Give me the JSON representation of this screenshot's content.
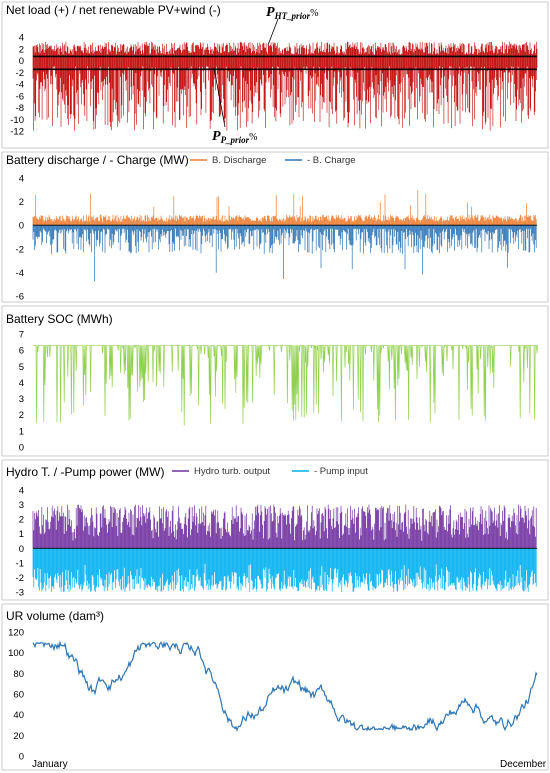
{
  "figure": {
    "x_axis": {
      "start_label": "January",
      "end_label": "December"
    }
  },
  "chart_data": [
    {
      "type": "line",
      "title": "Net load (+) / net renewable PV+wind (-)",
      "yticks": [
        4,
        2,
        0,
        -2,
        -4,
        -6,
        -8,
        -10,
        -12
      ],
      "ylim": [
        -12,
        4
      ],
      "grid": false,
      "series": [
        {
          "name": "",
          "color": "#c00000",
          "typical_range": [
            -12,
            3.2
          ]
        }
      ],
      "threshold_lines": [
        {
          "y": 0.7,
          "color": "#000000"
        },
        {
          "y": -1.5,
          "color": "#000000"
        }
      ],
      "annotations": [
        {
          "main": "P",
          "sub": "HT_prior",
          "suffix": "%"
        },
        {
          "main": "P",
          "sub": "P_prior",
          "suffix": "%"
        }
      ]
    },
    {
      "type": "bar",
      "title": "Battery discharge / - Charge (MW)",
      "yticks": [
        4,
        2,
        0,
        -2,
        -4,
        -6
      ],
      "ylim": [
        -6,
        4
      ],
      "legend_position": "top-right",
      "series": [
        {
          "name": "B. Discharge",
          "color": "#ed7d31",
          "typical_range": [
            0,
            3
          ]
        },
        {
          "name": "- B. Charge",
          "color": "#2e75b6",
          "typical_range": [
            -5.5,
            0
          ]
        }
      ]
    },
    {
      "type": "line",
      "title": "Battery SOC (MWh)",
      "yticks": [
        7,
        6,
        5,
        4,
        3,
        2,
        1,
        0
      ],
      "ylim": [
        0,
        7
      ],
      "series": [
        {
          "name": "",
          "color": "#92d050",
          "max": 6.3,
          "min": 1.3
        }
      ]
    },
    {
      "type": "bar",
      "title": "Hydro T. / -Pump power (MW)",
      "yticks": [
        4,
        3,
        2,
        1,
        0,
        -1,
        -2,
        -3
      ],
      "ylim": [
        -3,
        4
      ],
      "legend_position": "top-right",
      "series": [
        {
          "name": "Hydro turb. output",
          "color": "#7030a0",
          "typical_range": [
            0,
            3
          ]
        },
        {
          "name": "- Pump input",
          "color": "#00b0f0",
          "typical_range": [
            -3,
            0
          ]
        }
      ]
    },
    {
      "type": "line",
      "title": "UR volume (dam³)",
      "yticks": [
        120,
        100,
        80,
        60,
        40,
        20,
        0
      ],
      "ylim": [
        0,
        120
      ],
      "series": [
        {
          "name": "",
          "color": "#2e75b6",
          "max": 110,
          "min": 25
        }
      ]
    }
  ]
}
